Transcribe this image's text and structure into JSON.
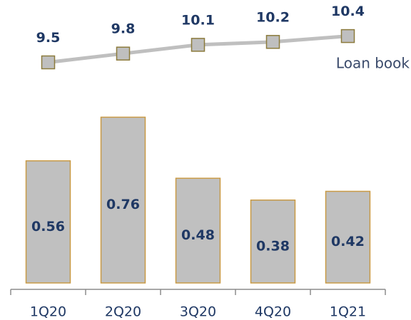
{
  "chart_data": {
    "type": "bar",
    "categories": [
      "1Q20",
      "2Q20",
      "3Q20",
      "4Q20",
      "1Q21"
    ],
    "series": [
      {
        "values": [
          0.56,
          0.76,
          0.48,
          0.38,
          0.42
        ],
        "color": "#c0c0c0",
        "edge_color": "#c99a45"
      },
      {
        "name": "Loan book",
        "type": "line",
        "axis": "y2",
        "values": [
          9.5,
          9.8,
          10.1,
          10.2,
          10.4
        ],
        "color": "#bfbfbf",
        "edge_color": "#8c7b3c"
      }
    ],
    "ylim": [
      0,
      1
    ],
    "y2lim": [
      9,
      11
    ]
  }
}
